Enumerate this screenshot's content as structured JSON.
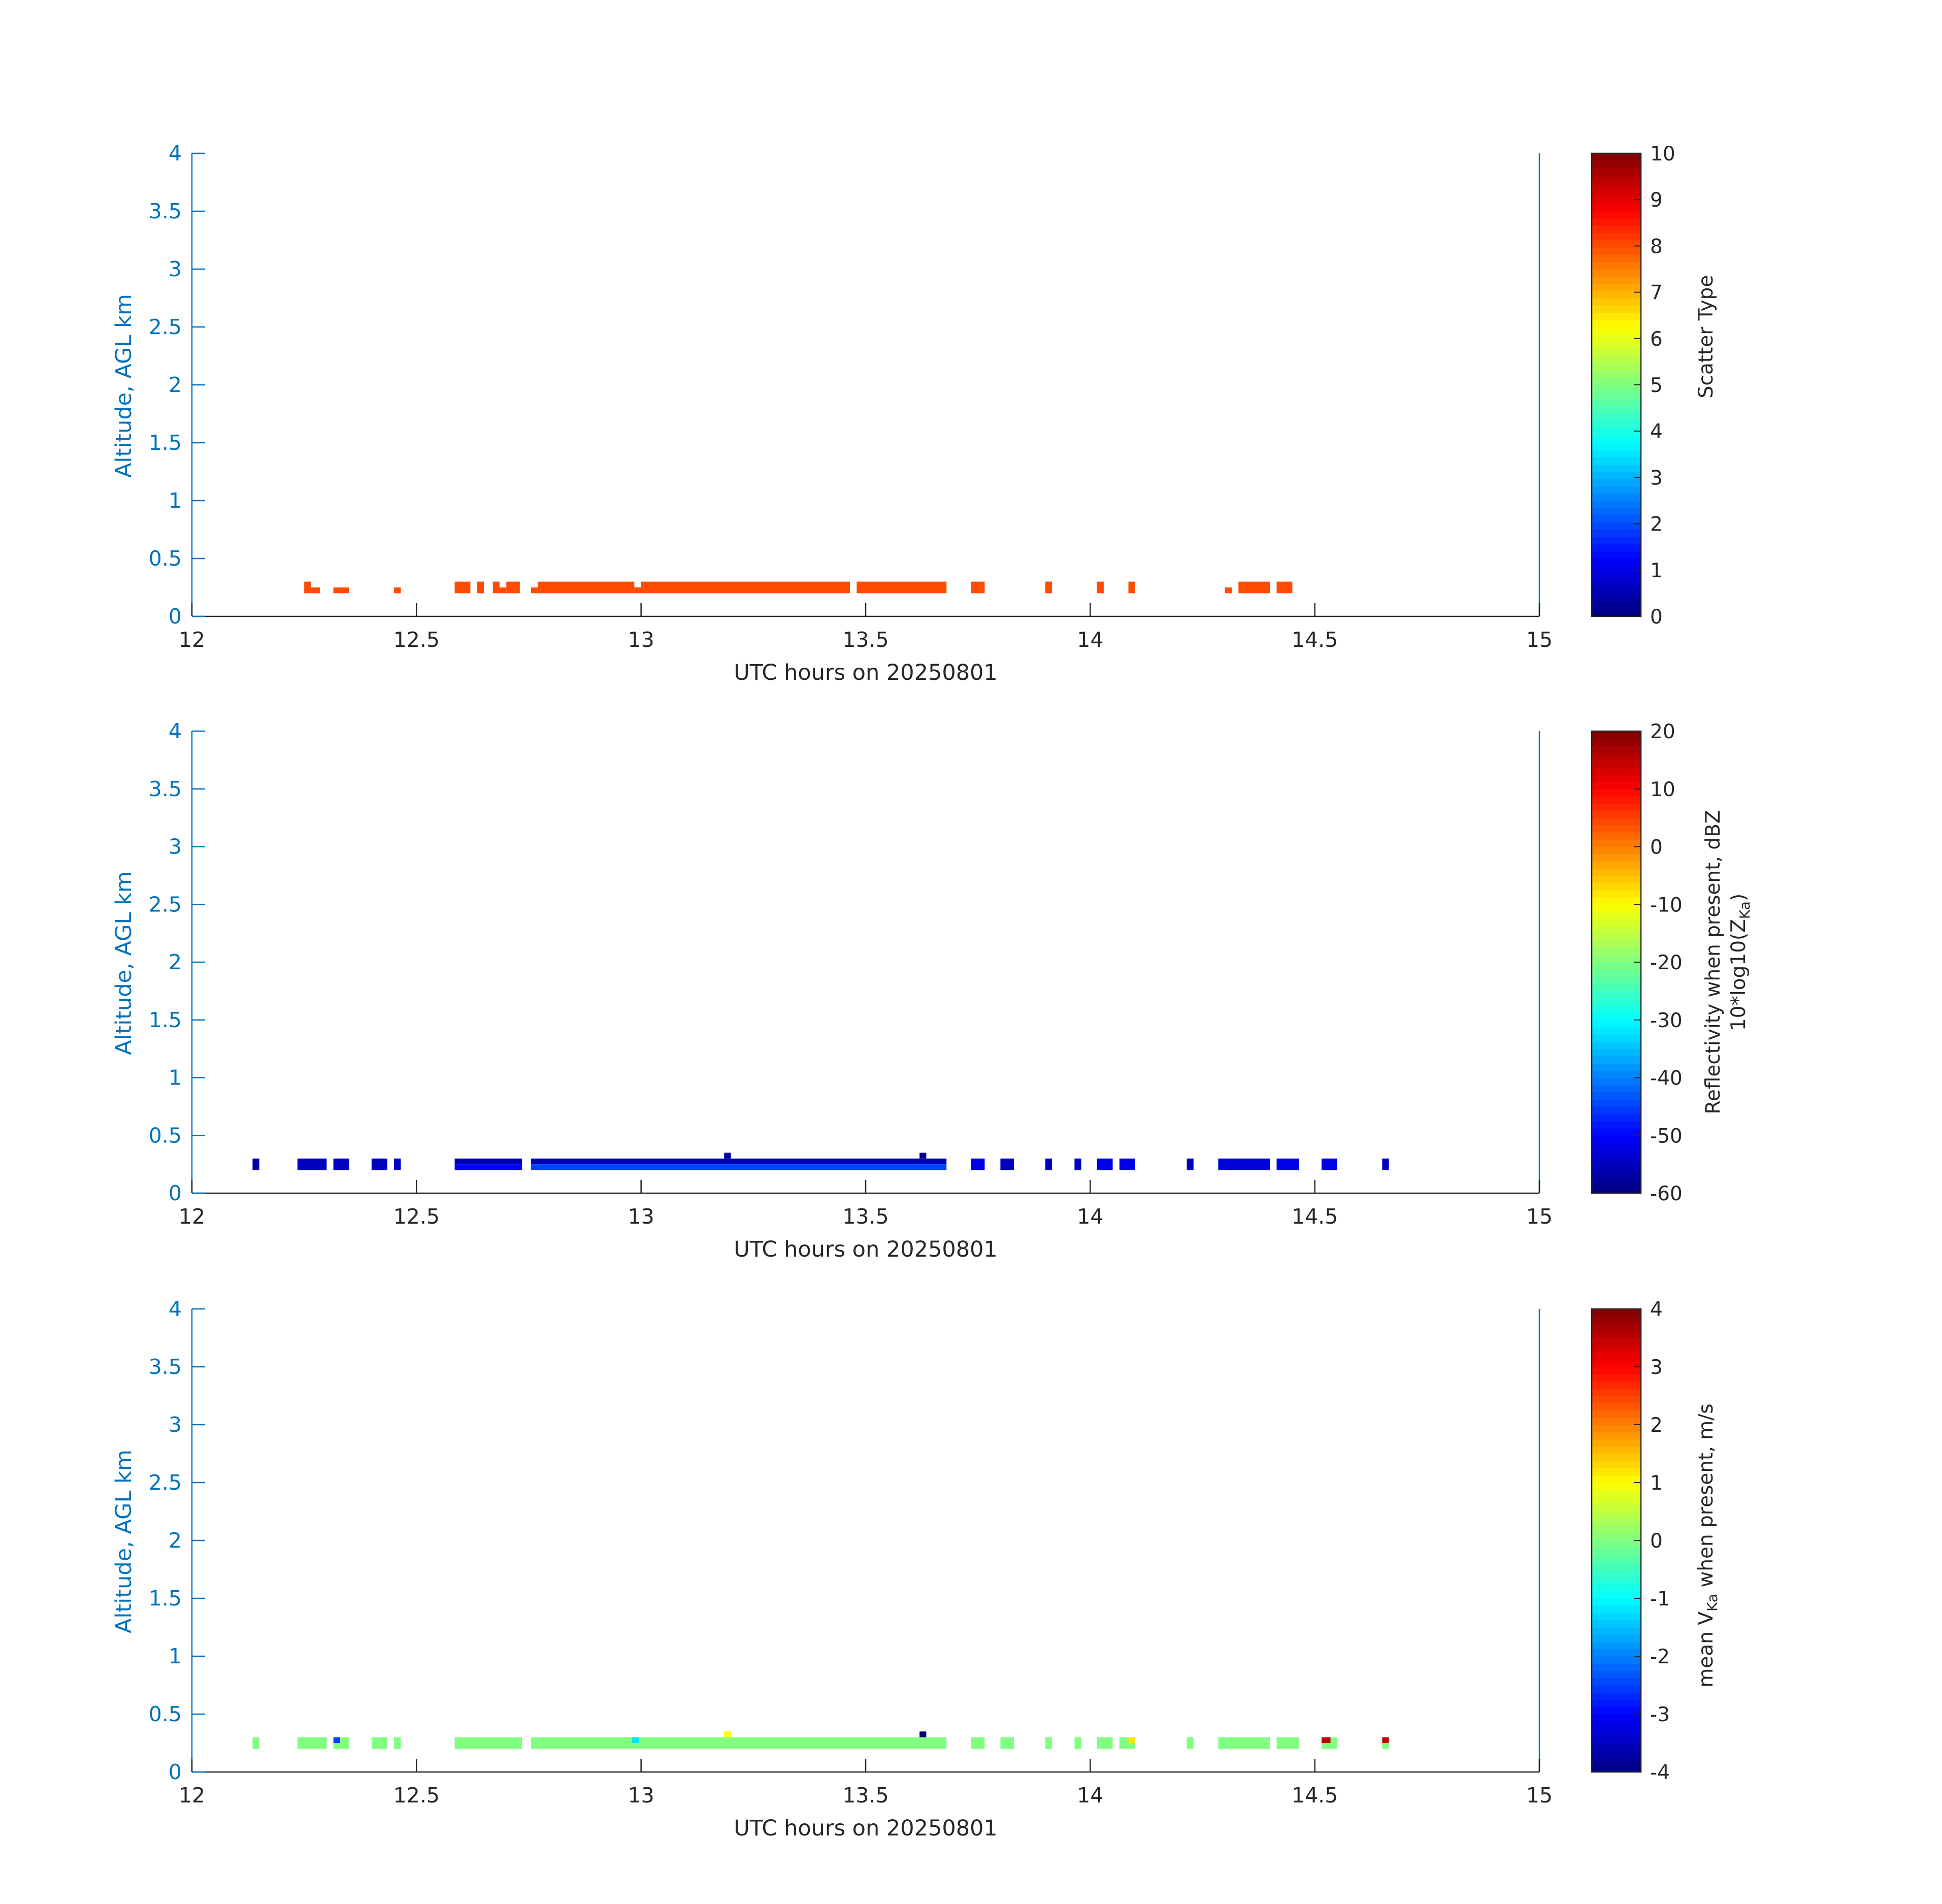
{
  "chart_data": [
    {
      "type": "heatmap",
      "xlabel": "UTC hours on 20250801",
      "ylabel": "Altitude, AGL km",
      "xlim": [
        12,
        15
      ],
      "ylim": [
        0,
        4
      ],
      "xticks": [
        "12",
        "12.5",
        "13",
        "13.5",
        "14",
        "14.5",
        "15"
      ],
      "yticks": [
        "0",
        "0.5",
        "1",
        "1.5",
        "2",
        "2.5",
        "3",
        "3.5",
        "4"
      ],
      "colorbar": {
        "label": "Scatter Type",
        "range": [
          0,
          10
        ],
        "ticks": [
          "0",
          "1",
          "2",
          "3",
          "4",
          "5",
          "6",
          "7",
          "8",
          "9",
          "10"
        ],
        "colormap": "jet"
      },
      "cells": [
        {
          "x": [
            12.25,
            12.265
          ],
          "y": [
            0.2,
            0.3
          ],
          "value": 8
        },
        {
          "x": [
            12.265,
            12.285
          ],
          "y": [
            0.2,
            0.25
          ],
          "value": 8
        },
        {
          "x": [
            12.315,
            12.35
          ],
          "y": [
            0.2,
            0.25
          ],
          "value": 8
        },
        {
          "x": [
            12.45,
            12.465
          ],
          "y": [
            0.2,
            0.25
          ],
          "value": 8
        },
        {
          "x": [
            12.585,
            12.62
          ],
          "y": [
            0.2,
            0.3
          ],
          "value": 8
        },
        {
          "x": [
            12.635,
            12.65
          ],
          "y": [
            0.2,
            0.3
          ],
          "value": 8
        },
        {
          "x": [
            12.67,
            12.685
          ],
          "y": [
            0.2,
            0.3
          ],
          "value": 8
        },
        {
          "x": [
            12.685,
            12.7
          ],
          "y": [
            0.2,
            0.25
          ],
          "value": 8
        },
        {
          "x": [
            12.7,
            12.73
          ],
          "y": [
            0.2,
            0.3
          ],
          "value": 8
        },
        {
          "x": [
            12.755,
            12.77
          ],
          "y": [
            0.2,
            0.25
          ],
          "value": 8
        },
        {
          "x": [
            12.77,
            12.985
          ],
          "y": [
            0.2,
            0.3
          ],
          "value": 8
        },
        {
          "x": [
            12.985,
            13.0
          ],
          "y": [
            0.2,
            0.25
          ],
          "value": 8
        },
        {
          "x": [
            13.0,
            13.465
          ],
          "y": [
            0.2,
            0.3
          ],
          "value": 8
        },
        {
          "x": [
            13.48,
            13.68
          ],
          "y": [
            0.2,
            0.3
          ],
          "value": 8
        },
        {
          "x": [
            13.735,
            13.765
          ],
          "y": [
            0.2,
            0.3
          ],
          "value": 8
        },
        {
          "x": [
            13.9,
            13.915
          ],
          "y": [
            0.2,
            0.3
          ],
          "value": 8
        },
        {
          "x": [
            14.015,
            14.03
          ],
          "y": [
            0.2,
            0.3
          ],
          "value": 8
        },
        {
          "x": [
            14.085,
            14.1
          ],
          "y": [
            0.2,
            0.3
          ],
          "value": 8
        },
        {
          "x": [
            14.3,
            14.315
          ],
          "y": [
            0.2,
            0.25
          ],
          "value": 8
        },
        {
          "x": [
            14.33,
            14.4
          ],
          "y": [
            0.2,
            0.3
          ],
          "value": 8
        },
        {
          "x": [
            14.415,
            14.45
          ],
          "y": [
            0.2,
            0.3
          ],
          "value": 8
        }
      ]
    },
    {
      "type": "heatmap",
      "xlabel": "UTC hours on 20250801",
      "ylabel": "Altitude, AGL km",
      "xlim": [
        12,
        15
      ],
      "ylim": [
        0,
        4
      ],
      "xticks": [
        "12",
        "12.5",
        "13",
        "13.5",
        "14",
        "14.5",
        "15"
      ],
      "yticks": [
        "0",
        "0.5",
        "1",
        "1.5",
        "2",
        "2.5",
        "3",
        "3.5",
        "4"
      ],
      "colorbar": {
        "label_line1": "Reflectivity when present, dBZ",
        "label_line2_prefix": "10*log10(Z",
        "label_line2_sub": "Ka",
        "label_line2_suffix": ")",
        "range": [
          -60,
          20
        ],
        "ticks": [
          "-60",
          "-50",
          "-40",
          "-30",
          "-20",
          "-10",
          "0",
          "10",
          "20"
        ],
        "colormap": "jet"
      },
      "cells": [
        {
          "x": [
            12.135,
            12.15
          ],
          "y": [
            0.2,
            0.3
          ],
          "value": -57
        },
        {
          "x": [
            12.235,
            12.3
          ],
          "y": [
            0.2,
            0.3
          ],
          "value": -55
        },
        {
          "x": [
            12.315,
            12.35
          ],
          "y": [
            0.2,
            0.3
          ],
          "value": -55
        },
        {
          "x": [
            12.4,
            12.435
          ],
          "y": [
            0.2,
            0.3
          ],
          "value": -55
        },
        {
          "x": [
            12.45,
            12.465
          ],
          "y": [
            0.2,
            0.3
          ],
          "value": -55
        },
        {
          "x": [
            12.585,
            12.735
          ],
          "y": [
            0.25,
            0.3
          ],
          "value": -56
        },
        {
          "x": [
            12.585,
            12.735
          ],
          "y": [
            0.2,
            0.25
          ],
          "value": -50
        },
        {
          "x": [
            12.755,
            13.68
          ],
          "y": [
            0.25,
            0.3
          ],
          "value": -56
        },
        {
          "x": [
            12.755,
            13.68
          ],
          "y": [
            0.2,
            0.25
          ],
          "value": -45
        },
        {
          "x": [
            13.185,
            13.2
          ],
          "y": [
            0.3,
            0.35
          ],
          "value": -58
        },
        {
          "x": [
            13.62,
            13.635
          ],
          "y": [
            0.3,
            0.35
          ],
          "value": -58
        },
        {
          "x": [
            13.735,
            13.765
          ],
          "y": [
            0.2,
            0.3
          ],
          "value": -52
        },
        {
          "x": [
            13.8,
            13.83
          ],
          "y": [
            0.2,
            0.3
          ],
          "value": -55
        },
        {
          "x": [
            13.9,
            13.915
          ],
          "y": [
            0.2,
            0.3
          ],
          "value": -55
        },
        {
          "x": [
            13.965,
            13.98
          ],
          "y": [
            0.2,
            0.3
          ],
          "value": -55
        },
        {
          "x": [
            14.015,
            14.05
          ],
          "y": [
            0.2,
            0.3
          ],
          "value": -52
        },
        {
          "x": [
            14.065,
            14.1
          ],
          "y": [
            0.2,
            0.3
          ],
          "value": -52
        },
        {
          "x": [
            14.215,
            14.23
          ],
          "y": [
            0.2,
            0.3
          ],
          "value": -55
        },
        {
          "x": [
            14.285,
            14.4
          ],
          "y": [
            0.2,
            0.3
          ],
          "value": -53
        },
        {
          "x": [
            14.415,
            14.465
          ],
          "y": [
            0.2,
            0.3
          ],
          "value": -52
        },
        {
          "x": [
            14.515,
            14.55
          ],
          "y": [
            0.2,
            0.3
          ],
          "value": -52
        },
        {
          "x": [
            14.65,
            14.665
          ],
          "y": [
            0.2,
            0.3
          ],
          "value": -55
        }
      ]
    },
    {
      "type": "heatmap",
      "xlabel": "UTC hours on 20250801",
      "ylabel": "Altitude, AGL km",
      "xlim": [
        12,
        15
      ],
      "ylim": [
        0,
        4
      ],
      "xticks": [
        "12",
        "12.5",
        "13",
        "13.5",
        "14",
        "14.5",
        "15"
      ],
      "yticks": [
        "0",
        "0.5",
        "1",
        "1.5",
        "2",
        "2.5",
        "3",
        "3.5",
        "4"
      ],
      "colorbar": {
        "label_prefix": "mean V",
        "label_sub": "Ka",
        "label_suffix": " when present, m/s",
        "range": [
          -4,
          4
        ],
        "ticks": [
          "-4",
          "-3",
          "-2",
          "-1",
          "0",
          "1",
          "2",
          "3",
          "4"
        ],
        "colormap": "jet"
      },
      "cells": [
        {
          "x": [
            12.135,
            12.15
          ],
          "y": [
            0.2,
            0.3
          ],
          "value": 0
        },
        {
          "x": [
            12.235,
            12.3
          ],
          "y": [
            0.2,
            0.3
          ],
          "value": 0
        },
        {
          "x": [
            12.315,
            12.33
          ],
          "y": [
            0.25,
            0.3
          ],
          "value": -2.5
        },
        {
          "x": [
            12.315,
            12.35
          ],
          "y": [
            0.2,
            0.25
          ],
          "value": 0
        },
        {
          "x": [
            12.33,
            12.35
          ],
          "y": [
            0.25,
            0.3
          ],
          "value": 0
        },
        {
          "x": [
            12.4,
            12.435
          ],
          "y": [
            0.2,
            0.3
          ],
          "value": 0
        },
        {
          "x": [
            12.45,
            12.465
          ],
          "y": [
            0.2,
            0.3
          ],
          "value": 0
        },
        {
          "x": [
            12.585,
            12.735
          ],
          "y": [
            0.2,
            0.3
          ],
          "value": 0
        },
        {
          "x": [
            12.755,
            13.68
          ],
          "y": [
            0.2,
            0.3
          ],
          "value": 0
        },
        {
          "x": [
            12.98,
            12.995
          ],
          "y": [
            0.25,
            0.3
          ],
          "value": -1.2
        },
        {
          "x": [
            13.185,
            13.2
          ],
          "y": [
            0.3,
            0.35
          ],
          "value": 1
        },
        {
          "x": [
            13.62,
            13.635
          ],
          "y": [
            0.3,
            0.35
          ],
          "value": -4
        },
        {
          "x": [
            13.735,
            13.765
          ],
          "y": [
            0.2,
            0.3
          ],
          "value": 0
        },
        {
          "x": [
            13.8,
            13.83
          ],
          "y": [
            0.2,
            0.3
          ],
          "value": 0
        },
        {
          "x": [
            13.9,
            13.915
          ],
          "y": [
            0.2,
            0.3
          ],
          "value": 0
        },
        {
          "x": [
            13.965,
            13.98
          ],
          "y": [
            0.2,
            0.3
          ],
          "value": 0
        },
        {
          "x": [
            14.015,
            14.05
          ],
          "y": [
            0.2,
            0.3
          ],
          "value": 0
        },
        {
          "x": [
            14.065,
            14.1
          ],
          "y": [
            0.2,
            0.3
          ],
          "value": 0
        },
        {
          "x": [
            14.085,
            14.1
          ],
          "y": [
            0.25,
            0.3
          ],
          "value": 1.2
        },
        {
          "x": [
            14.215,
            14.23
          ],
          "y": [
            0.2,
            0.3
          ],
          "value": 0
        },
        {
          "x": [
            14.285,
            14.4
          ],
          "y": [
            0.2,
            0.3
          ],
          "value": 0
        },
        {
          "x": [
            14.415,
            14.465
          ],
          "y": [
            0.2,
            0.3
          ],
          "value": 0
        },
        {
          "x": [
            14.515,
            14.535
          ],
          "y": [
            0.25,
            0.3
          ],
          "value": 3.5
        },
        {
          "x": [
            14.515,
            14.55
          ],
          "y": [
            0.2,
            0.25
          ],
          "value": 0
        },
        {
          "x": [
            14.535,
            14.55
          ],
          "y": [
            0.25,
            0.3
          ],
          "value": 0
        },
        {
          "x": [
            14.65,
            14.665
          ],
          "y": [
            0.25,
            0.3
          ],
          "value": 3.5
        },
        {
          "x": [
            14.65,
            14.665
          ],
          "y": [
            0.2,
            0.25
          ],
          "value": 0
        }
      ]
    }
  ]
}
